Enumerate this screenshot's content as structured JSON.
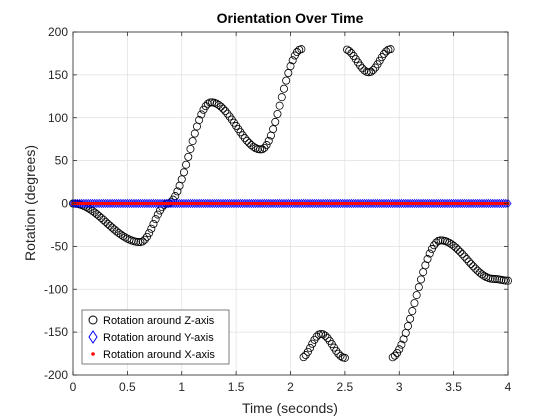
{
  "chart_data": {
    "type": "scatter",
    "title": "Orientation Over Time",
    "xlabel": "Time (seconds)",
    "ylabel": "Rotation (degrees)",
    "xlim": [
      0,
      4
    ],
    "ylim": [
      -200,
      200
    ],
    "xticks": [
      0,
      0.5,
      1,
      1.5,
      2,
      2.5,
      3,
      3.5,
      4
    ],
    "xtick_labels": [
      "0",
      "0.5",
      "1",
      "1.5",
      "2",
      "2.5",
      "3",
      "3.5",
      "4"
    ],
    "yticks": [
      -200,
      -150,
      -100,
      -50,
      0,
      50,
      100,
      150,
      200
    ],
    "ytick_labels": [
      "-200",
      "-150",
      "-100",
      "-50",
      "0",
      "50",
      "100",
      "150",
      "200"
    ],
    "grid": true,
    "legend_location": "bottom-left",
    "series": [
      {
        "name": "Rotation around Z-axis",
        "marker": "circle",
        "color": "#000000",
        "x_start": 0,
        "x_end": 4,
        "x_step": 0.02,
        "wrap": [
          -180,
          180
        ],
        "key_points": [
          {
            "x": 0,
            "y": 0
          },
          {
            "x": 0.62,
            "y": -45
          },
          {
            "x": 0.87,
            "y": 0
          },
          {
            "x": 1.27,
            "y": 118
          },
          {
            "x": 1.73,
            "y": 63
          },
          {
            "x": 2.1,
            "y": 180
          },
          {
            "x": 2.28,
            "y": -152
          },
          {
            "x": 2.5,
            "y": 180
          },
          {
            "x": 2.72,
            "y": 153
          },
          {
            "x": 2.92,
            "y": 180
          },
          {
            "x": 3.38,
            "y": -43
          },
          {
            "x": 3.87,
            "y": -88
          },
          {
            "x": 4.0,
            "y": -90
          }
        ]
      },
      {
        "name": "Rotation around Y-axis",
        "marker": "diamond",
        "color": "#0000ff",
        "x_start": 0,
        "x_end": 4,
        "x_step": 0.02,
        "constant_y": 0
      },
      {
        "name": "Rotation around X-axis",
        "marker": "dot",
        "color": "#ff0000",
        "x_start": 0,
        "x_end": 4,
        "x_step": 0.02,
        "constant_y": 0
      }
    ]
  }
}
